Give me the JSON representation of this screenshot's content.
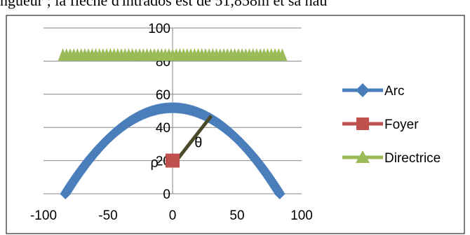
{
  "page": {
    "top_text": "ngueur ; la flèche d'intrados est de 51,858m et sa hau"
  },
  "chart_data": {
    "type": "scatter",
    "x_range": [
      -100,
      100
    ],
    "y_range": [
      0,
      100
    ],
    "x_ticks": [
      -100,
      -50,
      0,
      50,
      100
    ],
    "y_ticks": [
      0,
      20,
      40,
      60,
      80,
      100
    ],
    "grid": "horizontal",
    "legend_position": "right",
    "series": [
      {
        "name": "Arc",
        "color": "#4a7ebb",
        "marker": "diamond",
        "apex": [
          0,
          51.858
        ],
        "x_span": [
          -83,
          83
        ],
        "points": 167
      },
      {
        "name": "Foyer",
        "color": "#c0504d",
        "marker": "square",
        "x": 0,
        "y": 20
      },
      {
        "name": "Directrice",
        "color": "#9bbb59",
        "marker": "triangle",
        "y": 84,
        "x_span": [
          -85,
          85
        ]
      }
    ],
    "segment": {
      "from": [
        3,
        20
      ],
      "to": [
        30,
        47
      ],
      "color": "#4a4a2a"
    },
    "annotations": [
      {
        "id": "theta",
        "text": "θ",
        "x": 20,
        "y": 28
      },
      {
        "id": "rho",
        "text": "ρ",
        "x": -14,
        "y": 16
      }
    ]
  }
}
